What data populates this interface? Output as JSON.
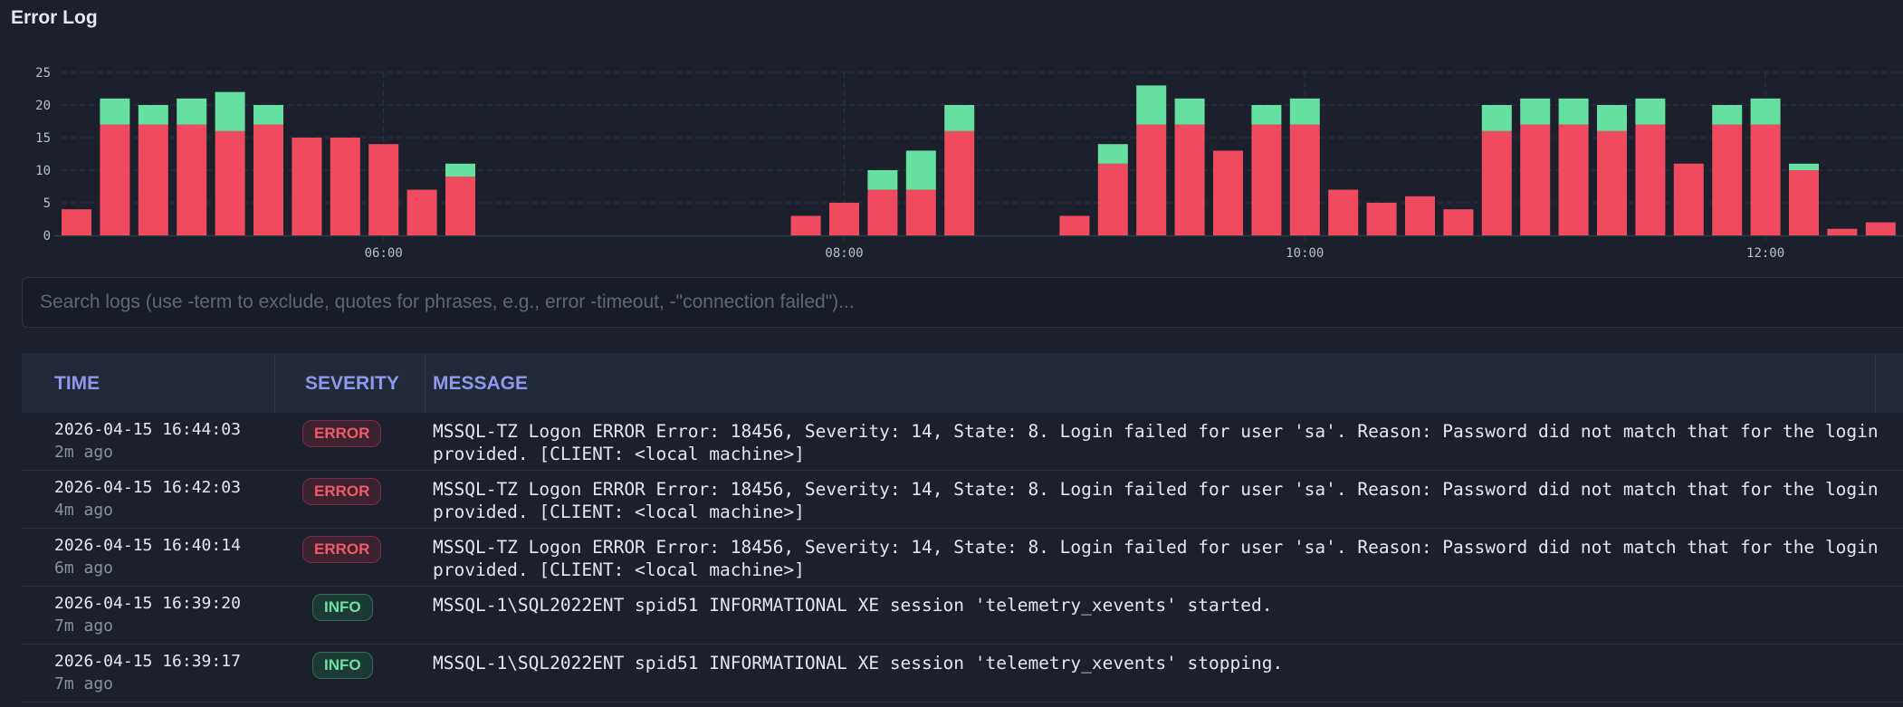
{
  "title": "Error Log",
  "colors": {
    "error": "#f04a5e",
    "info": "#66e0a0",
    "accent": "#8f98ec"
  },
  "chart_data": {
    "type": "bar",
    "stacked": true,
    "title": "",
    "xlabel": "",
    "ylabel": "",
    "ylim": [
      0,
      25
    ],
    "y_ticks": [
      "0",
      "5",
      "10",
      "15",
      "20",
      "25"
    ],
    "x_ticks": [
      {
        "label": "06:00",
        "slot": 8
      },
      {
        "label": "08:00",
        "slot": 20
      },
      {
        "label": "10:00",
        "slot": 32
      },
      {
        "label": "12:00",
        "slot": 44
      }
    ],
    "bucket_minutes": 10,
    "start": "04:40",
    "grid": true,
    "series": [
      {
        "name": "ERROR",
        "color": "#f04a5e",
        "values": [
          4,
          17,
          17,
          17,
          16,
          17,
          15,
          15,
          14,
          7,
          9,
          0,
          0,
          0,
          0,
          0,
          0,
          0,
          0,
          3,
          5,
          7,
          7,
          16,
          0,
          0,
          3,
          11,
          17,
          17,
          13,
          17,
          17,
          7,
          5,
          6,
          4,
          16,
          17,
          17,
          16,
          17,
          11,
          17,
          17,
          10,
          1,
          2
        ]
      },
      {
        "name": "INFO",
        "color": "#66e0a0",
        "values": [
          0,
          4,
          3,
          4,
          6,
          3,
          0,
          0,
          0,
          0,
          2,
          0,
          0,
          0,
          0,
          0,
          0,
          0,
          0,
          0,
          0,
          3,
          6,
          4,
          0,
          0,
          0,
          3,
          6,
          4,
          0,
          3,
          4,
          0,
          0,
          0,
          0,
          4,
          4,
          4,
          4,
          4,
          0,
          3,
          4,
          1,
          0,
          0
        ]
      }
    ]
  },
  "search": {
    "placeholder": "Search logs (use -term to exclude, quotes for phrases, e.g., error -timeout, -\"connection failed\")...",
    "value": ""
  },
  "table": {
    "headers": {
      "time": "TIME",
      "severity": "SEVERITY",
      "message": "MESSAGE"
    },
    "rows": [
      {
        "time": "2026-04-15 16:44:03",
        "ago": "2m ago",
        "severity": "ERROR",
        "message": "MSSQL-TZ Logon ERROR Error: 18456, Severity: 14, State: 8. Login failed for user 'sa'. Reason: Password did not match that for the login provided. [CLIENT: <local machine>]"
      },
      {
        "time": "2026-04-15 16:42:03",
        "ago": "4m ago",
        "severity": "ERROR",
        "message": "MSSQL-TZ Logon ERROR Error: 18456, Severity: 14, State: 8. Login failed for user 'sa'. Reason: Password did not match that for the login provided. [CLIENT: <local machine>]"
      },
      {
        "time": "2026-04-15 16:40:14",
        "ago": "6m ago",
        "severity": "ERROR",
        "message": "MSSQL-TZ Logon ERROR Error: 18456, Severity: 14, State: 8. Login failed for user 'sa'. Reason: Password did not match that for the login provided. [CLIENT: <local machine>]"
      },
      {
        "time": "2026-04-15 16:39:20",
        "ago": "7m ago",
        "severity": "INFO",
        "message": "MSSQL-1\\SQL2022ENT spid51 INFORMATIONAL XE session 'telemetry_xevents' started."
      },
      {
        "time": "2026-04-15 16:39:17",
        "ago": "7m ago",
        "severity": "INFO",
        "message": "MSSQL-1\\SQL2022ENT spid51 INFORMATIONAL XE session 'telemetry_xevents' stopping."
      }
    ]
  }
}
